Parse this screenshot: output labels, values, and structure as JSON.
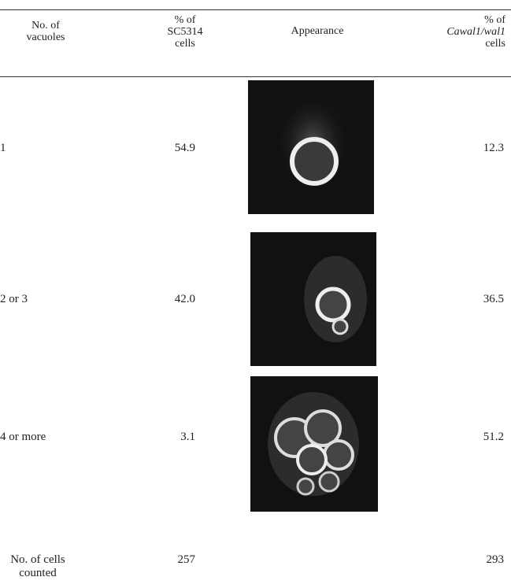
{
  "table": {
    "header": [
      {
        "lines": [
          "No. of",
          "vacuoles"
        ]
      },
      {
        "lines": [
          "% of",
          "SC5314",
          "cells"
        ]
      },
      {
        "lines": [
          "Appearance"
        ]
      },
      {
        "lines": [
          "% of",
          "Cawal1/wal1",
          "cells"
        ]
      }
    ],
    "rows": [
      [
        "1",
        "54.9",
        "12.3"
      ],
      [
        "2 or 3",
        "42.0",
        "36.5"
      ],
      [
        "4 or more",
        "3.1",
        "51.2"
      ]
    ],
    "footer": {
      "label": [
        "No. of cells",
        "counted"
      ],
      "wild_type": "257",
      "mutant": "293"
    }
  }
}
